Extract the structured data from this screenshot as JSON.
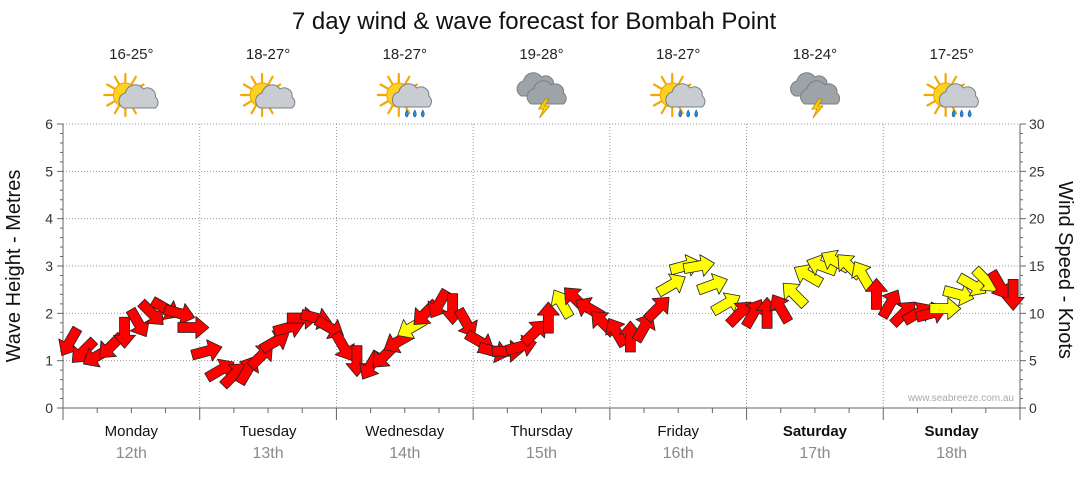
{
  "chart_data": {
    "type": "line",
    "title": "7 day wind & wave forecast for Bombah Point",
    "ylabel_left": "Wave Height - Metres",
    "ylabel_right": "Wind Speed - Knots",
    "ylim_left": [
      0,
      6
    ],
    "ylim_right": [
      0,
      30
    ],
    "yticks_left": [
      "0",
      "1",
      "2",
      "3",
      "4",
      "5",
      "6"
    ],
    "yticks_right": [
      "0",
      "5",
      "10",
      "15",
      "20",
      "25",
      "30"
    ],
    "grid": true,
    "watermark": "www.seabreeze.com.au",
    "days": [
      {
        "name": "Monday",
        "date": "12th",
        "temp": "16-25°",
        "weather_icon": "partly-cloudy-icon",
        "bold": false
      },
      {
        "name": "Tuesday",
        "date": "13th",
        "temp": "18-27°",
        "weather_icon": "partly-cloudy-icon",
        "bold": false
      },
      {
        "name": "Wednesday",
        "date": "14th",
        "temp": "18-27°",
        "weather_icon": "sun-cloud-rain-icon",
        "bold": false
      },
      {
        "name": "Thursday",
        "date": "15th",
        "temp": "19-28°",
        "weather_icon": "storm-icon",
        "bold": false
      },
      {
        "name": "Friday",
        "date": "16th",
        "temp": "18-27°",
        "weather_icon": "sun-cloud-rain-icon",
        "bold": false
      },
      {
        "name": "Saturday",
        "date": "17th",
        "temp": "18-24°",
        "weather_icon": "storm-icon",
        "bold": true
      },
      {
        "name": "Sunday",
        "date": "18th",
        "temp": "17-25°",
        "weather_icon": "sun-cloud-rain-icon",
        "bold": true
      }
    ],
    "series": [
      {
        "axis": "right",
        "unit": "knots",
        "x_days": [
          0.05,
          0.15,
          0.25,
          0.35,
          0.45,
          0.55,
          0.65,
          0.75,
          0.85,
          0.95,
          1.05,
          1.15,
          1.25,
          1.35,
          1.45,
          1.55,
          1.65,
          1.75,
          1.85,
          1.95,
          2.05,
          2.15,
          2.25,
          2.35,
          2.45,
          2.55,
          2.65,
          2.75,
          2.85,
          2.95,
          3.05,
          3.15,
          3.25,
          3.35,
          3.45,
          3.55,
          3.65,
          3.75,
          3.85,
          3.95,
          4.05,
          4.15,
          4.25,
          4.35,
          4.45,
          4.55,
          4.65,
          4.75,
          4.85,
          4.95,
          5.05,
          5.15,
          5.25,
          5.35,
          5.45,
          5.55,
          5.65,
          5.75,
          5.85,
          5.95,
          6.05,
          6.15,
          6.25,
          6.35,
          6.45,
          6.55,
          6.65,
          6.75,
          6.85,
          6.95
        ],
        "values": [
          7,
          6,
          5.5,
          6.5,
          8,
          9,
          10,
          10.5,
          10,
          8.5,
          6,
          4,
          3.5,
          4,
          5.5,
          7,
          8.5,
          9.5,
          9.5,
          8.5,
          6.5,
          5,
          4.5,
          5.5,
          7,
          8.5,
          10,
          11,
          10.5,
          9,
          7,
          6,
          6,
          6.5,
          8,
          9.5,
          11,
          11.5,
          10.5,
          9,
          8,
          7.5,
          8.5,
          10.5,
          13,
          15,
          15,
          13,
          11,
          10,
          10,
          10,
          10.5,
          12,
          14,
          15,
          15.5,
          15,
          14,
          12,
          11,
          10,
          10,
          10,
          10.5,
          12,
          13,
          13.5,
          13,
          12
        ],
        "directions_deg": [
          120,
          135,
          150,
          135,
          90,
          60,
          45,
          30,
          15,
          0,
          -15,
          -30,
          -45,
          -60,
          -45,
          -30,
          -15,
          0,
          15,
          30,
          60,
          90,
          120,
          135,
          150,
          150,
          135,
          120,
          90,
          60,
          30,
          15,
          0,
          -15,
          -45,
          -90,
          -120,
          -135,
          -150,
          -135,
          -120,
          -90,
          -60,
          -45,
          -30,
          -15,
          -10,
          -20,
          -30,
          -45,
          -60,
          -90,
          -120,
          -135,
          -150,
          -160,
          -150,
          -135,
          -120,
          -90,
          -60,
          -45,
          -30,
          -15,
          0,
          15,
          30,
          45,
          60,
          90
        ],
        "colors": [
          "#ff0000",
          "#ff0000",
          "#ff0000",
          "#ff0000",
          "#ff0000",
          "#ff0000",
          "#ff0000",
          "#ff0000",
          "#ff0000",
          "#ff0000",
          "#ff0000",
          "#ff0000",
          "#ff0000",
          "#ff0000",
          "#ff0000",
          "#ff0000",
          "#ff0000",
          "#ff0000",
          "#ff0000",
          "#ff0000",
          "#ff0000",
          "#ff0000",
          "#ff0000",
          "#ff0000",
          "#ff0000",
          "#ffff00",
          "#ff0000",
          "#ff0000",
          "#ff0000",
          "#ff0000",
          "#ff0000",
          "#ff0000",
          "#ff0000",
          "#ff0000",
          "#ff0000",
          "#ff0000",
          "#ffff00",
          "#ff0000",
          "#ff0000",
          "#ff0000",
          "#ff0000",
          "#ff0000",
          "#ff0000",
          "#ff0000",
          "#ffff00",
          "#ffff00",
          "#ffff00",
          "#ffff00",
          "#ffff00",
          "#ff0000",
          "#ff0000",
          "#ff0000",
          "#ff0000",
          "#ffff00",
          "#ffff00",
          "#ffff00",
          "#ffff00",
          "#ffff00",
          "#ffff00",
          "#ff0000",
          "#ff0000",
          "#ff0000",
          "#ff0000",
          "#ff0000",
          "#ffff00",
          "#ffff00",
          "#ffff00",
          "#ffff00",
          "#ff0000",
          "#ff0000"
        ]
      }
    ]
  }
}
